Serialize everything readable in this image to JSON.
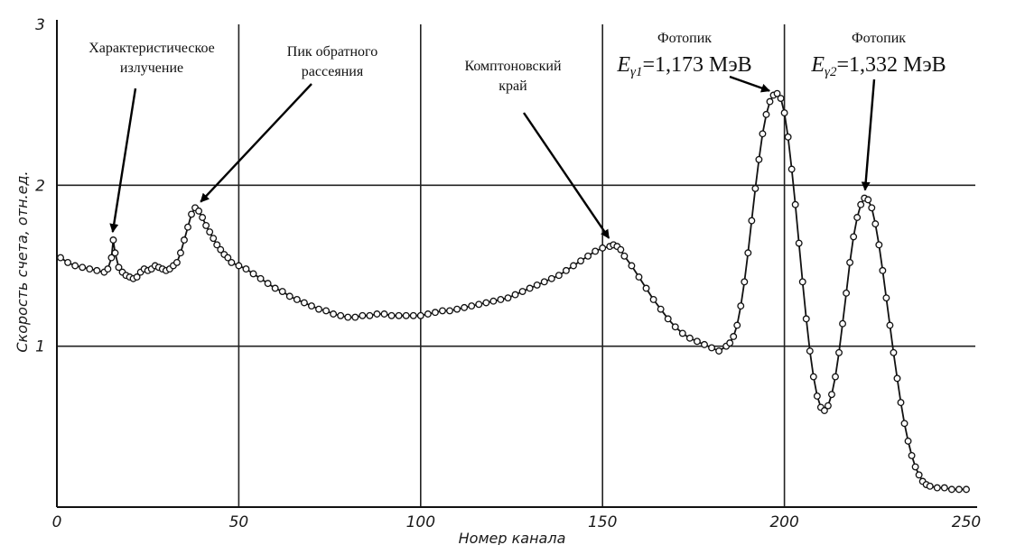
{
  "chart_data": {
    "type": "scatter",
    "xlabel": "Номер канала",
    "ylabel": "Скорость счета, отн.ед.",
    "xlim": [
      0,
      250
    ],
    "ylim": [
      0,
      3
    ],
    "x_ticks": [
      "0",
      "50",
      "100",
      "150",
      "200",
      "250"
    ],
    "y_ticks": [
      "1",
      "2",
      "3"
    ],
    "grid": true,
    "series": [
      {
        "points": [
          [
            1,
            1.55
          ],
          [
            3,
            1.52
          ],
          [
            5,
            1.5
          ],
          [
            7,
            1.49
          ],
          [
            9,
            1.48
          ],
          [
            11,
            1.47
          ],
          [
            13,
            1.46
          ],
          [
            14,
            1.48
          ],
          [
            15,
            1.55
          ],
          [
            15.5,
            1.66
          ],
          [
            16,
            1.58
          ],
          [
            17,
            1.49
          ],
          [
            18,
            1.46
          ],
          [
            19,
            1.44
          ],
          [
            20,
            1.43
          ],
          [
            21,
            1.42
          ],
          [
            22,
            1.43
          ],
          [
            23,
            1.46
          ],
          [
            24,
            1.48
          ],
          [
            25,
            1.47
          ],
          [
            26,
            1.48
          ],
          [
            27,
            1.5
          ],
          [
            28,
            1.49
          ],
          [
            29,
            1.48
          ],
          [
            30,
            1.47
          ],
          [
            31,
            1.48
          ],
          [
            32,
            1.5
          ],
          [
            33,
            1.52
          ],
          [
            34,
            1.58
          ],
          [
            35,
            1.66
          ],
          [
            36,
            1.74
          ],
          [
            37,
            1.82
          ],
          [
            38,
            1.86
          ],
          [
            39,
            1.84
          ],
          [
            40,
            1.8
          ],
          [
            41,
            1.75
          ],
          [
            42,
            1.71
          ],
          [
            43,
            1.67
          ],
          [
            44,
            1.63
          ],
          [
            45,
            1.6
          ],
          [
            46,
            1.57
          ],
          [
            47,
            1.55
          ],
          [
            48,
            1.52
          ],
          [
            50,
            1.5
          ],
          [
            52,
            1.48
          ],
          [
            54,
            1.45
          ],
          [
            56,
            1.42
          ],
          [
            58,
            1.39
          ],
          [
            60,
            1.36
          ],
          [
            62,
            1.34
          ],
          [
            64,
            1.31
          ],
          [
            66,
            1.29
          ],
          [
            68,
            1.27
          ],
          [
            70,
            1.25
          ],
          [
            72,
            1.23
          ],
          [
            74,
            1.22
          ],
          [
            76,
            1.2
          ],
          [
            78,
            1.19
          ],
          [
            80,
            1.18
          ],
          [
            82,
            1.18
          ],
          [
            84,
            1.19
          ],
          [
            86,
            1.19
          ],
          [
            88,
            1.2
          ],
          [
            90,
            1.2
          ],
          [
            92,
            1.19
          ],
          [
            94,
            1.19
          ],
          [
            96,
            1.19
          ],
          [
            98,
            1.19
          ],
          [
            100,
            1.19
          ],
          [
            102,
            1.2
          ],
          [
            104,
            1.21
          ],
          [
            106,
            1.22
          ],
          [
            108,
            1.22
          ],
          [
            110,
            1.23
          ],
          [
            112,
            1.24
          ],
          [
            114,
            1.25
          ],
          [
            116,
            1.26
          ],
          [
            118,
            1.27
          ],
          [
            120,
            1.28
          ],
          [
            122,
            1.29
          ],
          [
            124,
            1.3
          ],
          [
            126,
            1.32
          ],
          [
            128,
            1.34
          ],
          [
            130,
            1.36
          ],
          [
            132,
            1.38
          ],
          [
            134,
            1.4
          ],
          [
            136,
            1.42
          ],
          [
            138,
            1.44
          ],
          [
            140,
            1.47
          ],
          [
            142,
            1.5
          ],
          [
            144,
            1.53
          ],
          [
            146,
            1.56
          ],
          [
            148,
            1.59
          ],
          [
            150,
            1.61
          ],
          [
            152,
            1.62
          ],
          [
            153,
            1.63
          ],
          [
            154,
            1.62
          ],
          [
            155,
            1.6
          ],
          [
            156,
            1.56
          ],
          [
            158,
            1.5
          ],
          [
            160,
            1.43
          ],
          [
            162,
            1.36
          ],
          [
            164,
            1.29
          ],
          [
            166,
            1.23
          ],
          [
            168,
            1.17
          ],
          [
            170,
            1.12
          ],
          [
            172,
            1.08
          ],
          [
            174,
            1.05
          ],
          [
            176,
            1.03
          ],
          [
            178,
            1.01
          ],
          [
            180,
            0.99
          ],
          [
            182,
            0.97
          ],
          [
            184,
            1.0
          ],
          [
            185,
            1.02
          ],
          [
            186,
            1.06
          ],
          [
            187,
            1.13
          ],
          [
            188,
            1.25
          ],
          [
            189,
            1.4
          ],
          [
            190,
            1.58
          ],
          [
            191,
            1.78
          ],
          [
            192,
            1.98
          ],
          [
            193,
            2.16
          ],
          [
            194,
            2.32
          ],
          [
            195,
            2.44
          ],
          [
            196,
            2.52
          ],
          [
            197,
            2.56
          ],
          [
            198,
            2.57
          ],
          [
            199,
            2.54
          ],
          [
            200,
            2.45
          ],
          [
            201,
            2.3
          ],
          [
            202,
            2.1
          ],
          [
            203,
            1.88
          ],
          [
            204,
            1.64
          ],
          [
            205,
            1.4
          ],
          [
            206,
            1.17
          ],
          [
            207,
            0.97
          ],
          [
            208,
            0.81
          ],
          [
            209,
            0.69
          ],
          [
            210,
            0.62
          ],
          [
            211,
            0.6
          ],
          [
            212,
            0.63
          ],
          [
            213,
            0.7
          ],
          [
            214,
            0.81
          ],
          [
            215,
            0.96
          ],
          [
            216,
            1.14
          ],
          [
            217,
            1.33
          ],
          [
            218,
            1.52
          ],
          [
            219,
            1.68
          ],
          [
            220,
            1.8
          ],
          [
            221,
            1.88
          ],
          [
            222,
            1.92
          ],
          [
            223,
            1.91
          ],
          [
            224,
            1.86
          ],
          [
            225,
            1.76
          ],
          [
            226,
            1.63
          ],
          [
            227,
            1.47
          ],
          [
            228,
            1.3
          ],
          [
            229,
            1.13
          ],
          [
            230,
            0.96
          ],
          [
            231,
            0.8
          ],
          [
            232,
            0.65
          ],
          [
            233,
            0.52
          ],
          [
            234,
            0.41
          ],
          [
            235,
            0.32
          ],
          [
            236,
            0.25
          ],
          [
            237,
            0.2
          ],
          [
            238,
            0.16
          ],
          [
            239,
            0.14
          ],
          [
            240,
            0.13
          ],
          [
            242,
            0.12
          ],
          [
            244,
            0.12
          ],
          [
            246,
            0.11
          ],
          [
            248,
            0.11
          ],
          [
            250,
            0.11
          ]
        ]
      }
    ],
    "annotations": [
      {
        "lines": [
          "Характеристическое",
          "излучение"
        ],
        "target": [
          15,
          1.66
        ]
      },
      {
        "lines": [
          "Пик обратного",
          "рассеяния"
        ],
        "target": [
          38,
          1.86
        ]
      },
      {
        "lines": [
          "Комптоновский",
          "край"
        ],
        "target": [
          153,
          1.63
        ]
      },
      {
        "lines": [
          "Фотопик"
        ],
        "energy": {
          "var": "E",
          "sub": "γ1",
          "value": "=1,173 МэВ"
        },
        "target": [
          198,
          2.57
        ]
      },
      {
        "lines": [
          "Фотопик"
        ],
        "energy": {
          "var": "E",
          "sub": "γ2",
          "value": "=1,332 МэВ"
        },
        "target": [
          222,
          1.92
        ]
      }
    ]
  }
}
